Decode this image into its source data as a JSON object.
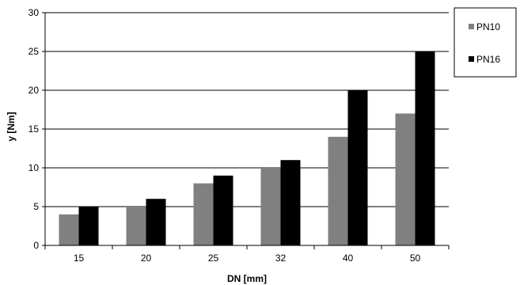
{
  "chart_data": {
    "type": "bar",
    "categories": [
      "15",
      "20",
      "25",
      "32",
      "40",
      "50"
    ],
    "series": [
      {
        "name": "PN10",
        "values": [
          4,
          5,
          8,
          10,
          14,
          17
        ],
        "color": "#808080"
      },
      {
        "name": "PN16",
        "values": [
          5,
          6,
          9,
          11,
          20,
          25
        ],
        "color": "#000000"
      }
    ],
    "xlabel": "DN [mm]",
    "ylabel": "y [Nm]",
    "ylim": [
      0,
      30
    ],
    "yticks": [
      0,
      5,
      10,
      15,
      20,
      25,
      30
    ],
    "grid": true,
    "legend_position": "top-right"
  }
}
